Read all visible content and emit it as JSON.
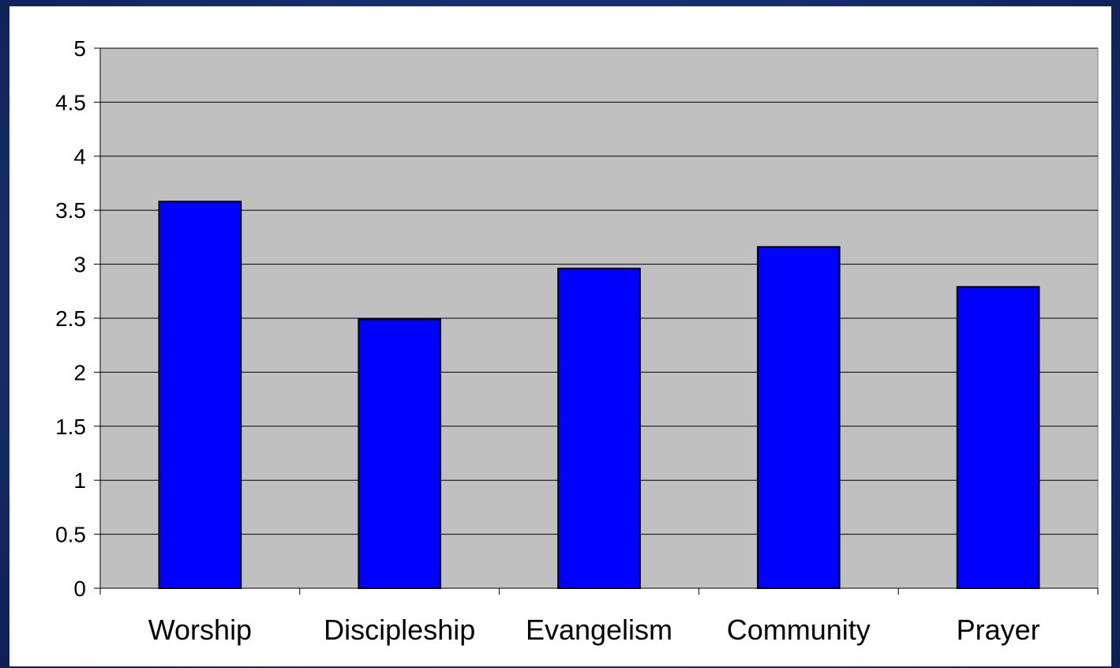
{
  "chart_data": {
    "type": "bar",
    "categories": [
      "Worship",
      "Discipleship",
      "Evangelism",
      "Community",
      "Prayer"
    ],
    "series": [
      {
        "values": [
          3.58,
          2.49,
          2.96,
          3.16,
          2.79
        ]
      }
    ],
    "title": "",
    "xlabel": "",
    "ylabel": "",
    "ylim": [
      0,
      5
    ],
    "yticks": [
      "0",
      "0.5",
      "1",
      "1.5",
      "2",
      "2.5",
      "3",
      "3.5",
      "4",
      "4.5",
      "5"
    ],
    "grid": "horizontal",
    "legend": "none",
    "colors": {
      "bar_fill": "#0000ff",
      "plot_background": "#c0c0c0",
      "page_background": "#1a3170",
      "panel_background": "#ffffff"
    }
  }
}
